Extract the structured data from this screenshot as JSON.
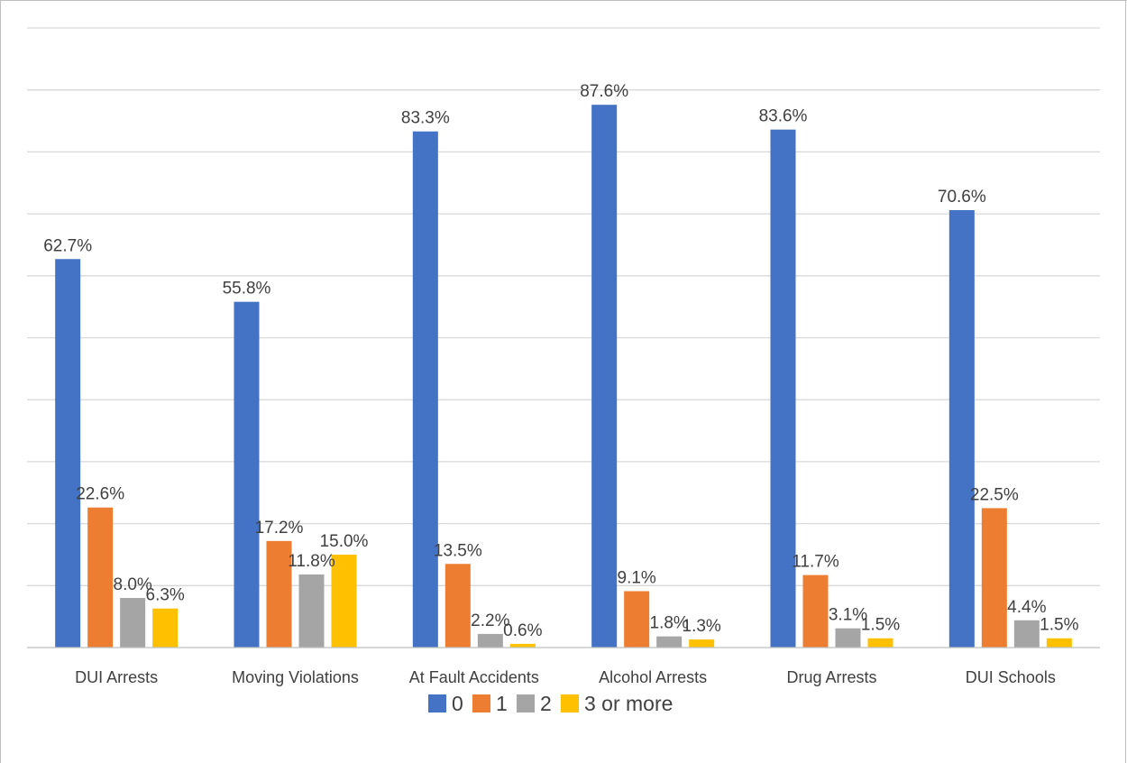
{
  "chart_data": {
    "type": "bar",
    "title": "",
    "xlabel": "",
    "ylabel": "",
    "ylim": [
      0,
      100
    ],
    "grid": true,
    "legend_position": "bottom",
    "categories": [
      "DUI Arrests",
      "Moving Violations",
      "At Fault Accidents",
      "Alcohol Arrests",
      "Drug Arrests",
      "DUI Schools"
    ],
    "series": [
      {
        "name": "0",
        "color": "#4472c4",
        "values": [
          62.7,
          55.8,
          83.3,
          87.6,
          83.6,
          70.6
        ],
        "labels": [
          "62.7%",
          "55.8%",
          "83.3%",
          "87.6%",
          "83.6%",
          "70.6%"
        ]
      },
      {
        "name": "1",
        "color": "#ed7d31",
        "values": [
          22.6,
          17.2,
          13.5,
          9.1,
          11.7,
          22.5
        ],
        "labels": [
          "22.6%",
          "17.2%",
          "13.5%",
          "9.1%",
          "11.7%",
          "22.5%"
        ]
      },
      {
        "name": "2",
        "color": "#a5a5a5",
        "values": [
          8.0,
          11.8,
          2.2,
          1.8,
          3.1,
          4.4
        ],
        "labels": [
          "8.0%",
          "11.8%",
          "2.2%",
          "1.8%",
          "3.1%",
          "4.4%"
        ]
      },
      {
        "name": "3 or more",
        "color": "#ffc000",
        "values": [
          6.3,
          15.0,
          0.6,
          1.3,
          1.5,
          1.5
        ],
        "labels": [
          "6.3%",
          "15.0%",
          "0.6%",
          "1.3%",
          "1.5%",
          "1.5%"
        ]
      }
    ]
  }
}
